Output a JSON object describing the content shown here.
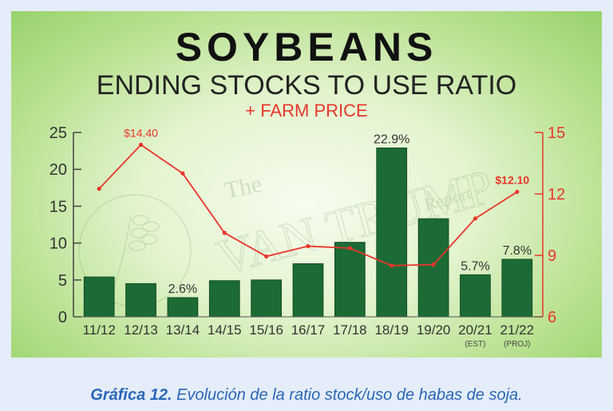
{
  "caption": {
    "label": "Gráfica 12.",
    "text": "Evolución de la ratio stock/uso de habas de soja."
  },
  "watermark": {
    "line1": "The",
    "line2": "VAN TRUMP",
    "line3": "Report"
  },
  "chart_data": {
    "type": "bar",
    "title": "SOYBEANS",
    "subtitle": "ENDING STOCKS TO USE RATIO",
    "subtitle2": "+ FARM PRICE",
    "categories": [
      "11/12",
      "12/13",
      "13/14",
      "14/15",
      "15/16",
      "16/17",
      "17/18",
      "18/19",
      "19/20",
      "20/21",
      "21/22"
    ],
    "category_sublabels": [
      "",
      "",
      "",
      "",
      "",
      "",
      "",
      "",
      "",
      "(EST)",
      "(PROJ)"
    ],
    "series": [
      {
        "axis": "left",
        "type": "bar",
        "values": [
          5.4,
          4.5,
          2.6,
          4.9,
          5.0,
          7.2,
          10.1,
          22.9,
          13.3,
          5.7,
          7.8
        ],
        "data_labels": [
          "",
          "",
          "2.6%",
          "",
          "",
          "",
          "",
          "22.9%",
          "",
          "5.7%",
          "7.8%"
        ],
        "color": "#1c6b36"
      },
      {
        "axis": "right",
        "type": "line",
        "values": [
          12.25,
          14.4,
          13.0,
          10.1,
          8.95,
          9.45,
          9.35,
          8.5,
          8.55,
          10.8,
          12.1
        ],
        "data_labels": [
          "",
          "$14.40",
          "",
          "",
          "",
          "",
          "",
          "",
          "",
          "",
          "$12.10"
        ],
        "color": "#e8362b"
      }
    ],
    "ylim_left": [
      0,
      25
    ],
    "yticks_left": [
      0,
      5,
      10,
      15,
      20,
      25
    ],
    "ylim_right": [
      6,
      15
    ],
    "yticks_right": [
      6,
      9,
      12,
      15
    ],
    "left_axis_color": "#444444",
    "right_axis_color": "#e8362b",
    "grid": false,
    "xlabel": "",
    "ylabel": ""
  }
}
